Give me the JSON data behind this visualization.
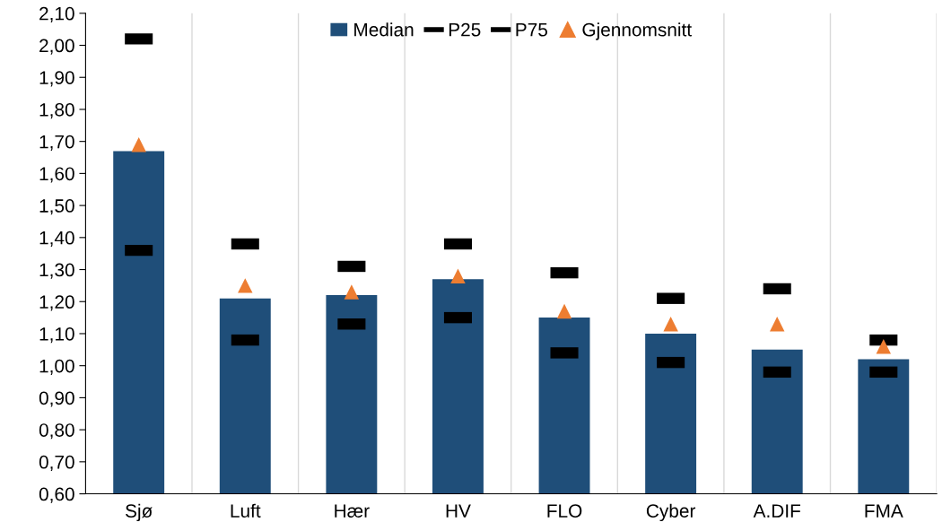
{
  "chart_data": {
    "type": "bar",
    "categories": [
      "Sjø",
      "Luft",
      "Hær",
      "HV",
      "FLO",
      "Cyber",
      "A.DIF",
      "FMA"
    ],
    "series": [
      {
        "name": "Median",
        "color": "#1f4e79",
        "values": [
          1.67,
          1.21,
          1.22,
          1.27,
          1.15,
          1.1,
          1.05,
          1.02
        ]
      },
      {
        "name": "P25",
        "type": "scatter",
        "color": "#000000",
        "values": [
          1.36,
          1.08,
          1.13,
          1.15,
          1.04,
          1.01,
          0.98,
          0.98
        ]
      },
      {
        "name": "P75",
        "type": "scatter",
        "color": "#000000",
        "values": [
          2.02,
          1.38,
          1.31,
          1.38,
          1.29,
          1.21,
          1.24,
          1.08
        ]
      },
      {
        "name": "Gjennomsnitt",
        "type": "scatter",
        "marker": "triangle",
        "color": "#ed7d31",
        "values": [
          1.69,
          1.25,
          1.23,
          1.28,
          1.17,
          1.13,
          1.13,
          1.06
        ]
      }
    ],
    "ylim": [
      0.6,
      2.1
    ],
    "yticks": [
      {
        "value": 0.6,
        "label": "0,60"
      },
      {
        "value": 0.7,
        "label": "0,70"
      },
      {
        "value": 0.8,
        "label": "0,80"
      },
      {
        "value": 0.9,
        "label": "0,90"
      },
      {
        "value": 1.0,
        "label": "1,00"
      },
      {
        "value": 1.1,
        "label": "1,10"
      },
      {
        "value": 1.2,
        "label": "1,20"
      },
      {
        "value": 1.3,
        "label": "1,30"
      },
      {
        "value": 1.4,
        "label": "1,40"
      },
      {
        "value": 1.5,
        "label": "1,50"
      },
      {
        "value": 1.6,
        "label": "1,60"
      },
      {
        "value": 1.7,
        "label": "1,70"
      },
      {
        "value": 1.8,
        "label": "1,80"
      },
      {
        "value": 1.9,
        "label": "1,90"
      },
      {
        "value": 2.0,
        "label": "2,00"
      },
      {
        "value": 2.1,
        "label": "2,10"
      }
    ],
    "grid": "x",
    "legend": "top"
  }
}
